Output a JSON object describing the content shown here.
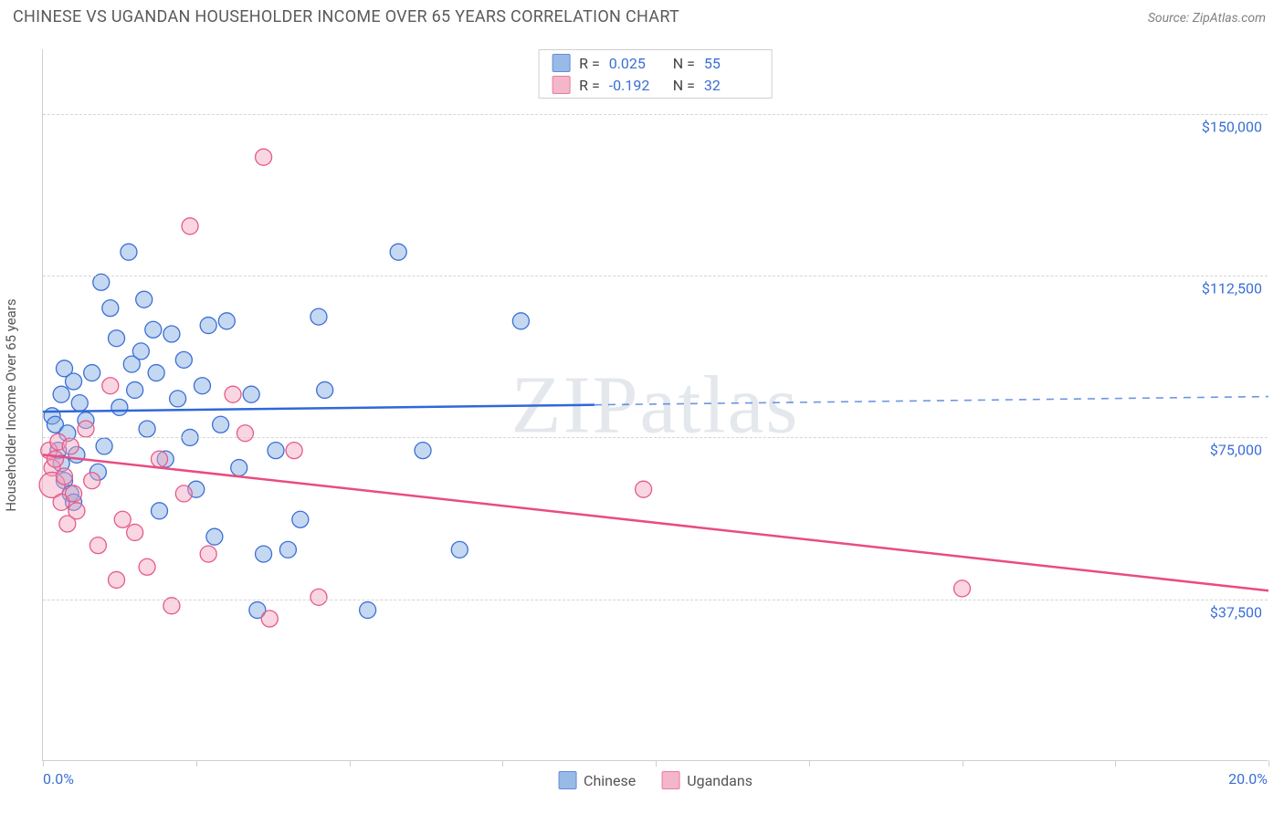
{
  "header": {
    "title": "CHINESE VS UGANDAN HOUSEHOLDER INCOME OVER 65 YEARS CORRELATION CHART",
    "source": "Source: ZipAtlas.com"
  },
  "chart": {
    "type": "scatter",
    "y_axis_label": "Householder Income Over 65 years",
    "watermark": "ZIPatlas",
    "background_color": "#ffffff",
    "grid_color": "#d5d5d5",
    "axis_color": "#cfcfcf",
    "tick_label_color": "#3b6fd6",
    "x_domain": [
      0.0,
      20.0
    ],
    "y_domain": [
      0,
      165000
    ],
    "y_ticks": [
      {
        "value": 37500,
        "label": "$37,500"
      },
      {
        "value": 75000,
        "label": "$75,000"
      },
      {
        "value": 112500,
        "label": "$112,500"
      },
      {
        "value": 150000,
        "label": "$150,000"
      }
    ],
    "x_ticks_at": [
      0.0,
      2.5,
      5.0,
      7.5,
      10.0,
      12.5,
      15.0,
      17.5,
      20.0
    ],
    "x_range_labels": {
      "min": "0.0%",
      "max": "20.0%"
    },
    "series": [
      {
        "id": "chinese",
        "label": "Chinese",
        "fill_color": "#7fa9e0",
        "fill_opacity": 0.45,
        "stroke_color": "#3b6fd6",
        "line_color": "#2f68d8",
        "marker_radius": 9,
        "r_value": "0.025",
        "n_value": "55",
        "trend": {
          "x1": 0.0,
          "y1": 81000,
          "x2": 20.0,
          "y2": 84500,
          "solid_until_x": 9.0
        },
        "points": [
          {
            "x": 0.15,
            "y": 80000
          },
          {
            "x": 0.2,
            "y": 78000
          },
          {
            "x": 0.25,
            "y": 72000
          },
          {
            "x": 0.3,
            "y": 69000
          },
          {
            "x": 0.3,
            "y": 85000
          },
          {
            "x": 0.35,
            "y": 91000
          },
          {
            "x": 0.35,
            "y": 65000
          },
          {
            "x": 0.4,
            "y": 76000
          },
          {
            "x": 0.45,
            "y": 62000
          },
          {
            "x": 0.5,
            "y": 88000
          },
          {
            "x": 0.5,
            "y": 60000
          },
          {
            "x": 0.55,
            "y": 71000
          },
          {
            "x": 0.6,
            "y": 83000
          },
          {
            "x": 0.7,
            "y": 79000
          },
          {
            "x": 0.8,
            "y": 90000
          },
          {
            "x": 0.9,
            "y": 67000
          },
          {
            "x": 0.95,
            "y": 111000
          },
          {
            "x": 1.0,
            "y": 73000
          },
          {
            "x": 1.1,
            "y": 105000
          },
          {
            "x": 1.2,
            "y": 98000
          },
          {
            "x": 1.25,
            "y": 82000
          },
          {
            "x": 1.4,
            "y": 118000
          },
          {
            "x": 1.45,
            "y": 92000
          },
          {
            "x": 1.5,
            "y": 86000
          },
          {
            "x": 1.6,
            "y": 95000
          },
          {
            "x": 1.65,
            "y": 107000
          },
          {
            "x": 1.7,
            "y": 77000
          },
          {
            "x": 1.8,
            "y": 100000
          },
          {
            "x": 1.85,
            "y": 90000
          },
          {
            "x": 1.9,
            "y": 58000
          },
          {
            "x": 2.0,
            "y": 70000
          },
          {
            "x": 2.1,
            "y": 99000
          },
          {
            "x": 2.2,
            "y": 84000
          },
          {
            "x": 2.3,
            "y": 93000
          },
          {
            "x": 2.4,
            "y": 75000
          },
          {
            "x": 2.5,
            "y": 63000
          },
          {
            "x": 2.6,
            "y": 87000
          },
          {
            "x": 2.7,
            "y": 101000
          },
          {
            "x": 2.8,
            "y": 52000
          },
          {
            "x": 2.9,
            "y": 78000
          },
          {
            "x": 3.0,
            "y": 102000
          },
          {
            "x": 3.2,
            "y": 68000
          },
          {
            "x": 3.4,
            "y": 85000
          },
          {
            "x": 3.5,
            "y": 35000
          },
          {
            "x": 3.6,
            "y": 48000
          },
          {
            "x": 3.8,
            "y": 72000
          },
          {
            "x": 4.2,
            "y": 56000
          },
          {
            "x": 4.5,
            "y": 103000
          },
          {
            "x": 4.6,
            "y": 86000
          },
          {
            "x": 5.3,
            "y": 35000
          },
          {
            "x": 5.8,
            "y": 118000
          },
          {
            "x": 6.2,
            "y": 72000
          },
          {
            "x": 6.8,
            "y": 49000
          },
          {
            "x": 7.8,
            "y": 102000
          },
          {
            "x": 4.0,
            "y": 49000
          }
        ]
      },
      {
        "id": "ugandans",
        "label": "Ugandans",
        "fill_color": "#f2a5bc",
        "fill_opacity": 0.45,
        "stroke_color": "#e65a8a",
        "line_color": "#ea4b83",
        "marker_radius": 9,
        "r_value": "-0.192",
        "n_value": "32",
        "trend": {
          "x1": 0.0,
          "y1": 71000,
          "x2": 20.0,
          "y2": 39500,
          "solid_until_x": 20.0
        },
        "points": [
          {
            "x": 0.1,
            "y": 72000
          },
          {
            "x": 0.15,
            "y": 68000
          },
          {
            "x": 0.15,
            "y": 64000,
            "r": 14
          },
          {
            "x": 0.2,
            "y": 70000
          },
          {
            "x": 0.25,
            "y": 74000
          },
          {
            "x": 0.3,
            "y": 60000
          },
          {
            "x": 0.35,
            "y": 66000
          },
          {
            "x": 0.4,
            "y": 55000
          },
          {
            "x": 0.45,
            "y": 73000
          },
          {
            "x": 0.5,
            "y": 62000
          },
          {
            "x": 0.55,
            "y": 58000
          },
          {
            "x": 0.7,
            "y": 77000
          },
          {
            "x": 0.8,
            "y": 65000
          },
          {
            "x": 0.9,
            "y": 50000
          },
          {
            "x": 1.1,
            "y": 87000
          },
          {
            "x": 1.2,
            "y": 42000
          },
          {
            "x": 1.3,
            "y": 56000
          },
          {
            "x": 1.5,
            "y": 53000
          },
          {
            "x": 1.7,
            "y": 45000
          },
          {
            "x": 1.9,
            "y": 70000
          },
          {
            "x": 2.1,
            "y": 36000
          },
          {
            "x": 2.3,
            "y": 62000
          },
          {
            "x": 2.4,
            "y": 124000
          },
          {
            "x": 2.7,
            "y": 48000
          },
          {
            "x": 3.1,
            "y": 85000
          },
          {
            "x": 3.3,
            "y": 76000
          },
          {
            "x": 3.6,
            "y": 140000
          },
          {
            "x": 3.7,
            "y": 33000
          },
          {
            "x": 4.1,
            "y": 72000
          },
          {
            "x": 4.5,
            "y": 38000
          },
          {
            "x": 9.8,
            "y": 63000
          },
          {
            "x": 15.0,
            "y": 40000
          }
        ]
      }
    ],
    "stats_legend": {
      "r_prefix": "R =",
      "n_prefix": "N ="
    },
    "bottom_legend_items": [
      {
        "series": "chinese"
      },
      {
        "series": "ugandans"
      }
    ]
  }
}
